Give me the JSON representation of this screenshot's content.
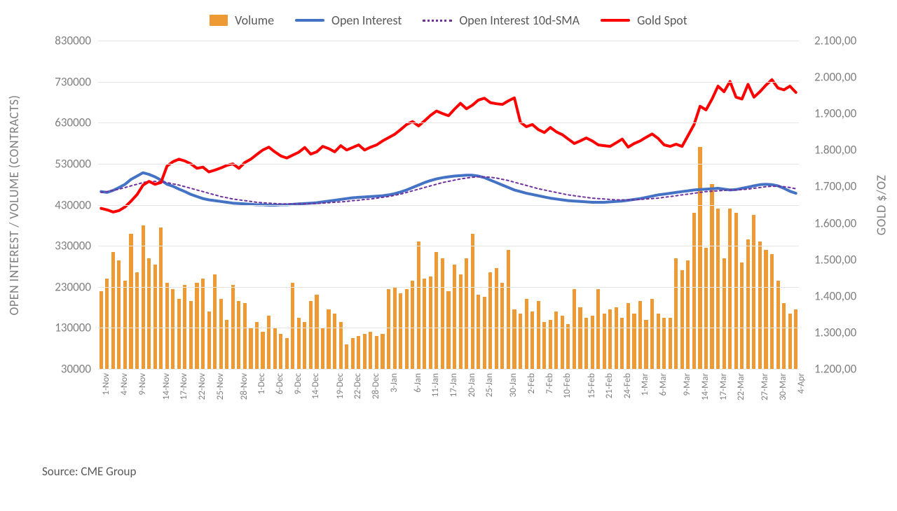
{
  "chart": {
    "type": "combo-bar-line",
    "background_color": "#ffffff",
    "grid_color": "#e6e6e6",
    "axis_label_color": "#808080",
    "axis_label_fontsize": 17,
    "axis_title_fontsize": 18,
    "legend_fontsize": 18,
    "source_note": "Source: CME Group",
    "legend": [
      {
        "label": "Volume",
        "kind": "bar",
        "color": "#ed9a35"
      },
      {
        "label": "Open Interest",
        "kind": "line",
        "color": "#4472c4"
      },
      {
        "label": "Open Interest 10d-SMA",
        "kind": "dotted",
        "color": "#7030a0"
      },
      {
        "label": "Gold Spot",
        "kind": "line",
        "color": "#ff0000"
      }
    ],
    "y_left": {
      "title": "OPEN INTEREST / VOLUME (CONTRACTS)",
      "min": 30000,
      "max": 830000,
      "ticks": [
        30000,
        130000,
        230000,
        330000,
        430000,
        530000,
        630000,
        730000,
        830000
      ],
      "tick_labels": [
        "30000",
        "130000",
        "230000",
        "330000",
        "430000",
        "530000",
        "630000",
        "730000",
        "830000"
      ]
    },
    "y_right": {
      "title": "GOLD $/OZ",
      "min": 1200,
      "max": 2100,
      "ticks": [
        1200,
        1300,
        1400,
        1500,
        1600,
        1700,
        1800,
        1900,
        2000,
        2100
      ],
      "tick_labels": [
        "1.200,00",
        "1.300,00",
        "1.400,00",
        "1.500,00",
        "1.600,00",
        "1.700,00",
        "1.800,00",
        "1.900,00",
        "2.000,00",
        "2.100,00"
      ]
    },
    "x_categories": [
      "1-Nov",
      "",
      "",
      "4-Nov",
      "",
      "",
      "",
      "",
      "9-Nov",
      "",
      "",
      "",
      "",
      "14-Nov",
      "",
      "",
      "17-Nov",
      "",
      "",
      "",
      "",
      "22-Nov",
      "",
      "",
      "25-Nov",
      "",
      "",
      "28-Nov",
      "",
      "",
      "1-Dec",
      "",
      "",
      "",
      "",
      "6-Dec",
      "",
      "",
      "9-Dec",
      "",
      "",
      "",
      "",
      "14-Dec",
      "",
      "",
      "",
      "",
      "19-Dec",
      "",
      "",
      "22-Dec",
      "",
      "",
      "",
      "",
      "28-Dec",
      "",
      "",
      "",
      "",
      "",
      "3-Jan",
      "",
      "",
      "6-Jan",
      "",
      "",
      "",
      "",
      "11-Jan",
      "",
      "",
      "",
      "",
      "",
      "17-Jan",
      "",
      "",
      "20-Jan",
      "",
      "",
      "",
      "",
      "25-Jan",
      "",
      "",
      "",
      "",
      "30-Jan",
      "",
      "",
      "2-Feb",
      "",
      "",
      "",
      "",
      "7-Feb",
      "",
      "",
      "10-Feb",
      "",
      "",
      "",
      "",
      "15-Feb",
      "",
      "",
      "",
      "",
      "",
      "21-Feb",
      "",
      "",
      "24-Feb",
      "",
      "",
      "",
      "",
      "1-Mar",
      "",
      "",
      "",
      "",
      "6-Mar",
      "",
      "",
      "9-Mar",
      "",
      "",
      "",
      "",
      "14-Mar",
      "",
      "",
      "17-Mar",
      "",
      "",
      "",
      "",
      "22-Mar",
      "",
      "",
      "",
      "",
      "27-Mar",
      "",
      "",
      "30-Mar",
      "",
      "",
      "",
      "4-Apr"
    ],
    "x_visible_ticks": [
      "1-Nov",
      "4-Nov",
      "9-Nov",
      "14-Nov",
      "17-Nov",
      "22-Nov",
      "25-Nov",
      "28-Nov",
      "1-Dec",
      "6-Dec",
      "9-Dec",
      "14-Dec",
      "19-Dec",
      "22-Dec",
      "28-Dec",
      "3-Jan",
      "6-Jan",
      "11-Jan",
      "17-Jan",
      "20-Jan",
      "25-Jan",
      "30-Jan",
      "2-Feb",
      "7-Feb",
      "10-Feb",
      "15-Feb",
      "21-Feb",
      "24-Feb",
      "1-Mar",
      "6-Mar",
      "9-Mar",
      "14-Mar",
      "17-Mar",
      "22-Mar",
      "27-Mar",
      "30-Mar",
      "4-Apr"
    ],
    "series": {
      "volume": {
        "color": "#ed9a35",
        "bar_width_ratio": 0.6,
        "values": [
          220000,
          250000,
          315000,
          295000,
          245000,
          360000,
          265000,
          380000,
          300000,
          285000,
          375000,
          240000,
          225000,
          200000,
          235000,
          195000,
          240000,
          250000,
          170000,
          260000,
          200000,
          150000,
          235000,
          195000,
          190000,
          130000,
          145000,
          120000,
          160000,
          130000,
          115000,
          105000,
          240000,
          155000,
          145000,
          195000,
          210000,
          130000,
          175000,
          165000,
          145000,
          90000,
          105000,
          110000,
          115000,
          120000,
          110000,
          115000,
          225000,
          230000,
          215000,
          225000,
          245000,
          340000,
          250000,
          255000,
          315000,
          300000,
          220000,
          285000,
          260000,
          300000,
          360000,
          210000,
          205000,
          265000,
          275000,
          240000,
          320000,
          175000,
          165000,
          200000,
          170000,
          195000,
          145000,
          150000,
          170000,
          160000,
          140000,
          225000,
          180000,
          155000,
          160000,
          225000,
          165000,
          175000,
          180000,
          155000,
          190000,
          165000,
          195000,
          150000,
          200000,
          165000,
          155000,
          155000,
          300000,
          270000,
          295000,
          410000,
          570000,
          325000,
          480000,
          420000,
          300000,
          420000,
          410000,
          290000,
          345000,
          405000,
          340000,
          320000,
          310000,
          245000,
          190000,
          165000,
          175000
        ]
      },
      "open_interest": {
        "color": "#4472c4",
        "line_width": 4,
        "values": [
          462000,
          460000,
          465000,
          472000,
          480000,
          492000,
          500000,
          508000,
          504000,
          498000,
          490000,
          480000,
          475000,
          468000,
          462000,
          455000,
          450000,
          445000,
          442000,
          440000,
          438000,
          436000,
          434000,
          433000,
          432000,
          431000,
          430000,
          430000,
          429000,
          429000,
          430000,
          430000,
          431000,
          432000,
          433000,
          434000,
          435000,
          437000,
          439000,
          441000,
          443000,
          445000,
          447000,
          448000,
          449000,
          450000,
          451000,
          452000,
          454000,
          457000,
          461000,
          466000,
          472000,
          478000,
          484000,
          489000,
          493000,
          496000,
          498000,
          500000,
          501000,
          502000,
          502000,
          500000,
          496000,
          490000,
          484000,
          478000,
          472000,
          466000,
          462000,
          458000,
          455000,
          452000,
          449000,
          446000,
          444000,
          442000,
          440000,
          439000,
          438000,
          437000,
          436000,
          436000,
          436000,
          437000,
          438000,
          439000,
          441000,
          443000,
          445000,
          448000,
          451000,
          454000,
          456000,
          458000,
          460000,
          462000,
          464000,
          466000,
          467000,
          468000,
          469000,
          470000,
          468000,
          466000,
          467000,
          470000,
          473000,
          476000,
          479000,
          480000,
          479000,
          476000,
          470000,
          463000,
          458000
        ]
      },
      "open_interest_sma": {
        "color": "#7030a0",
        "line_width": 2,
        "dash": "3,4",
        "values": [
          460000,
          462000,
          465000,
          468000,
          472000,
          476000,
          480000,
          484000,
          487000,
          487000,
          486000,
          484000,
          481000,
          478000,
          474000,
          470000,
          466000,
          462000,
          458000,
          454000,
          450000,
          447000,
          444000,
          442000,
          440000,
          438000,
          436000,
          435000,
          434000,
          433000,
          432000,
          432000,
          432000,
          432000,
          432000,
          433000,
          433000,
          434000,
          435000,
          436000,
          437000,
          438000,
          440000,
          441000,
          443000,
          444000,
          446000,
          448000,
          450000,
          453000,
          456000,
          460000,
          464000,
          468000,
          472000,
          476000,
          480000,
          484000,
          487000,
          490000,
          493000,
          495000,
          497000,
          498000,
          498000,
          497000,
          495000,
          492000,
          489000,
          485000,
          481000,
          477000,
          473000,
          469000,
          466000,
          463000,
          460000,
          457000,
          454000,
          452000,
          450000,
          448000,
          446000,
          445000,
          444000,
          443000,
          442000,
          442000,
          442000,
          442000,
          443000,
          444000,
          445000,
          446000,
          448000,
          450000,
          452000,
          454000,
          456000,
          458000,
          460000,
          462000,
          463000,
          464000,
          465000,
          466000,
          466000,
          467000,
          468000,
          470000,
          472000,
          474000,
          475000,
          475000,
          474000,
          472000,
          469000
        ]
      },
      "gold_spot": {
        "color": "#ff0000",
        "line_width": 4,
        "axis": "right",
        "values": [
          1640,
          1636,
          1630,
          1634,
          1644,
          1660,
          1678,
          1704,
          1714,
          1706,
          1711,
          1756,
          1768,
          1775,
          1770,
          1762,
          1750,
          1753,
          1740,
          1745,
          1751,
          1758,
          1762,
          1750,
          1766,
          1775,
          1788,
          1800,
          1808,
          1795,
          1784,
          1778,
          1786,
          1794,
          1807,
          1789,
          1795,
          1810,
          1804,
          1795,
          1812,
          1800,
          1807,
          1814,
          1800,
          1808,
          1814,
          1825,
          1834,
          1843,
          1856,
          1870,
          1878,
          1866,
          1880,
          1895,
          1907,
          1900,
          1894,
          1912,
          1928,
          1913,
          1923,
          1937,
          1942,
          1930,
          1927,
          1925,
          1935,
          1943,
          1876,
          1864,
          1870,
          1856,
          1848,
          1862,
          1850,
          1842,
          1830,
          1818,
          1825,
          1833,
          1825,
          1814,
          1812,
          1810,
          1820,
          1830,
          1808,
          1818,
          1825,
          1835,
          1844,
          1832,
          1814,
          1810,
          1816,
          1810,
          1840,
          1870,
          1920,
          1910,
          1940,
          1975,
          1960,
          1988,
          1945,
          1940,
          1980,
          1945,
          1960,
          1978,
          1993,
          1970,
          1965,
          1975,
          1958
        ]
      }
    }
  }
}
